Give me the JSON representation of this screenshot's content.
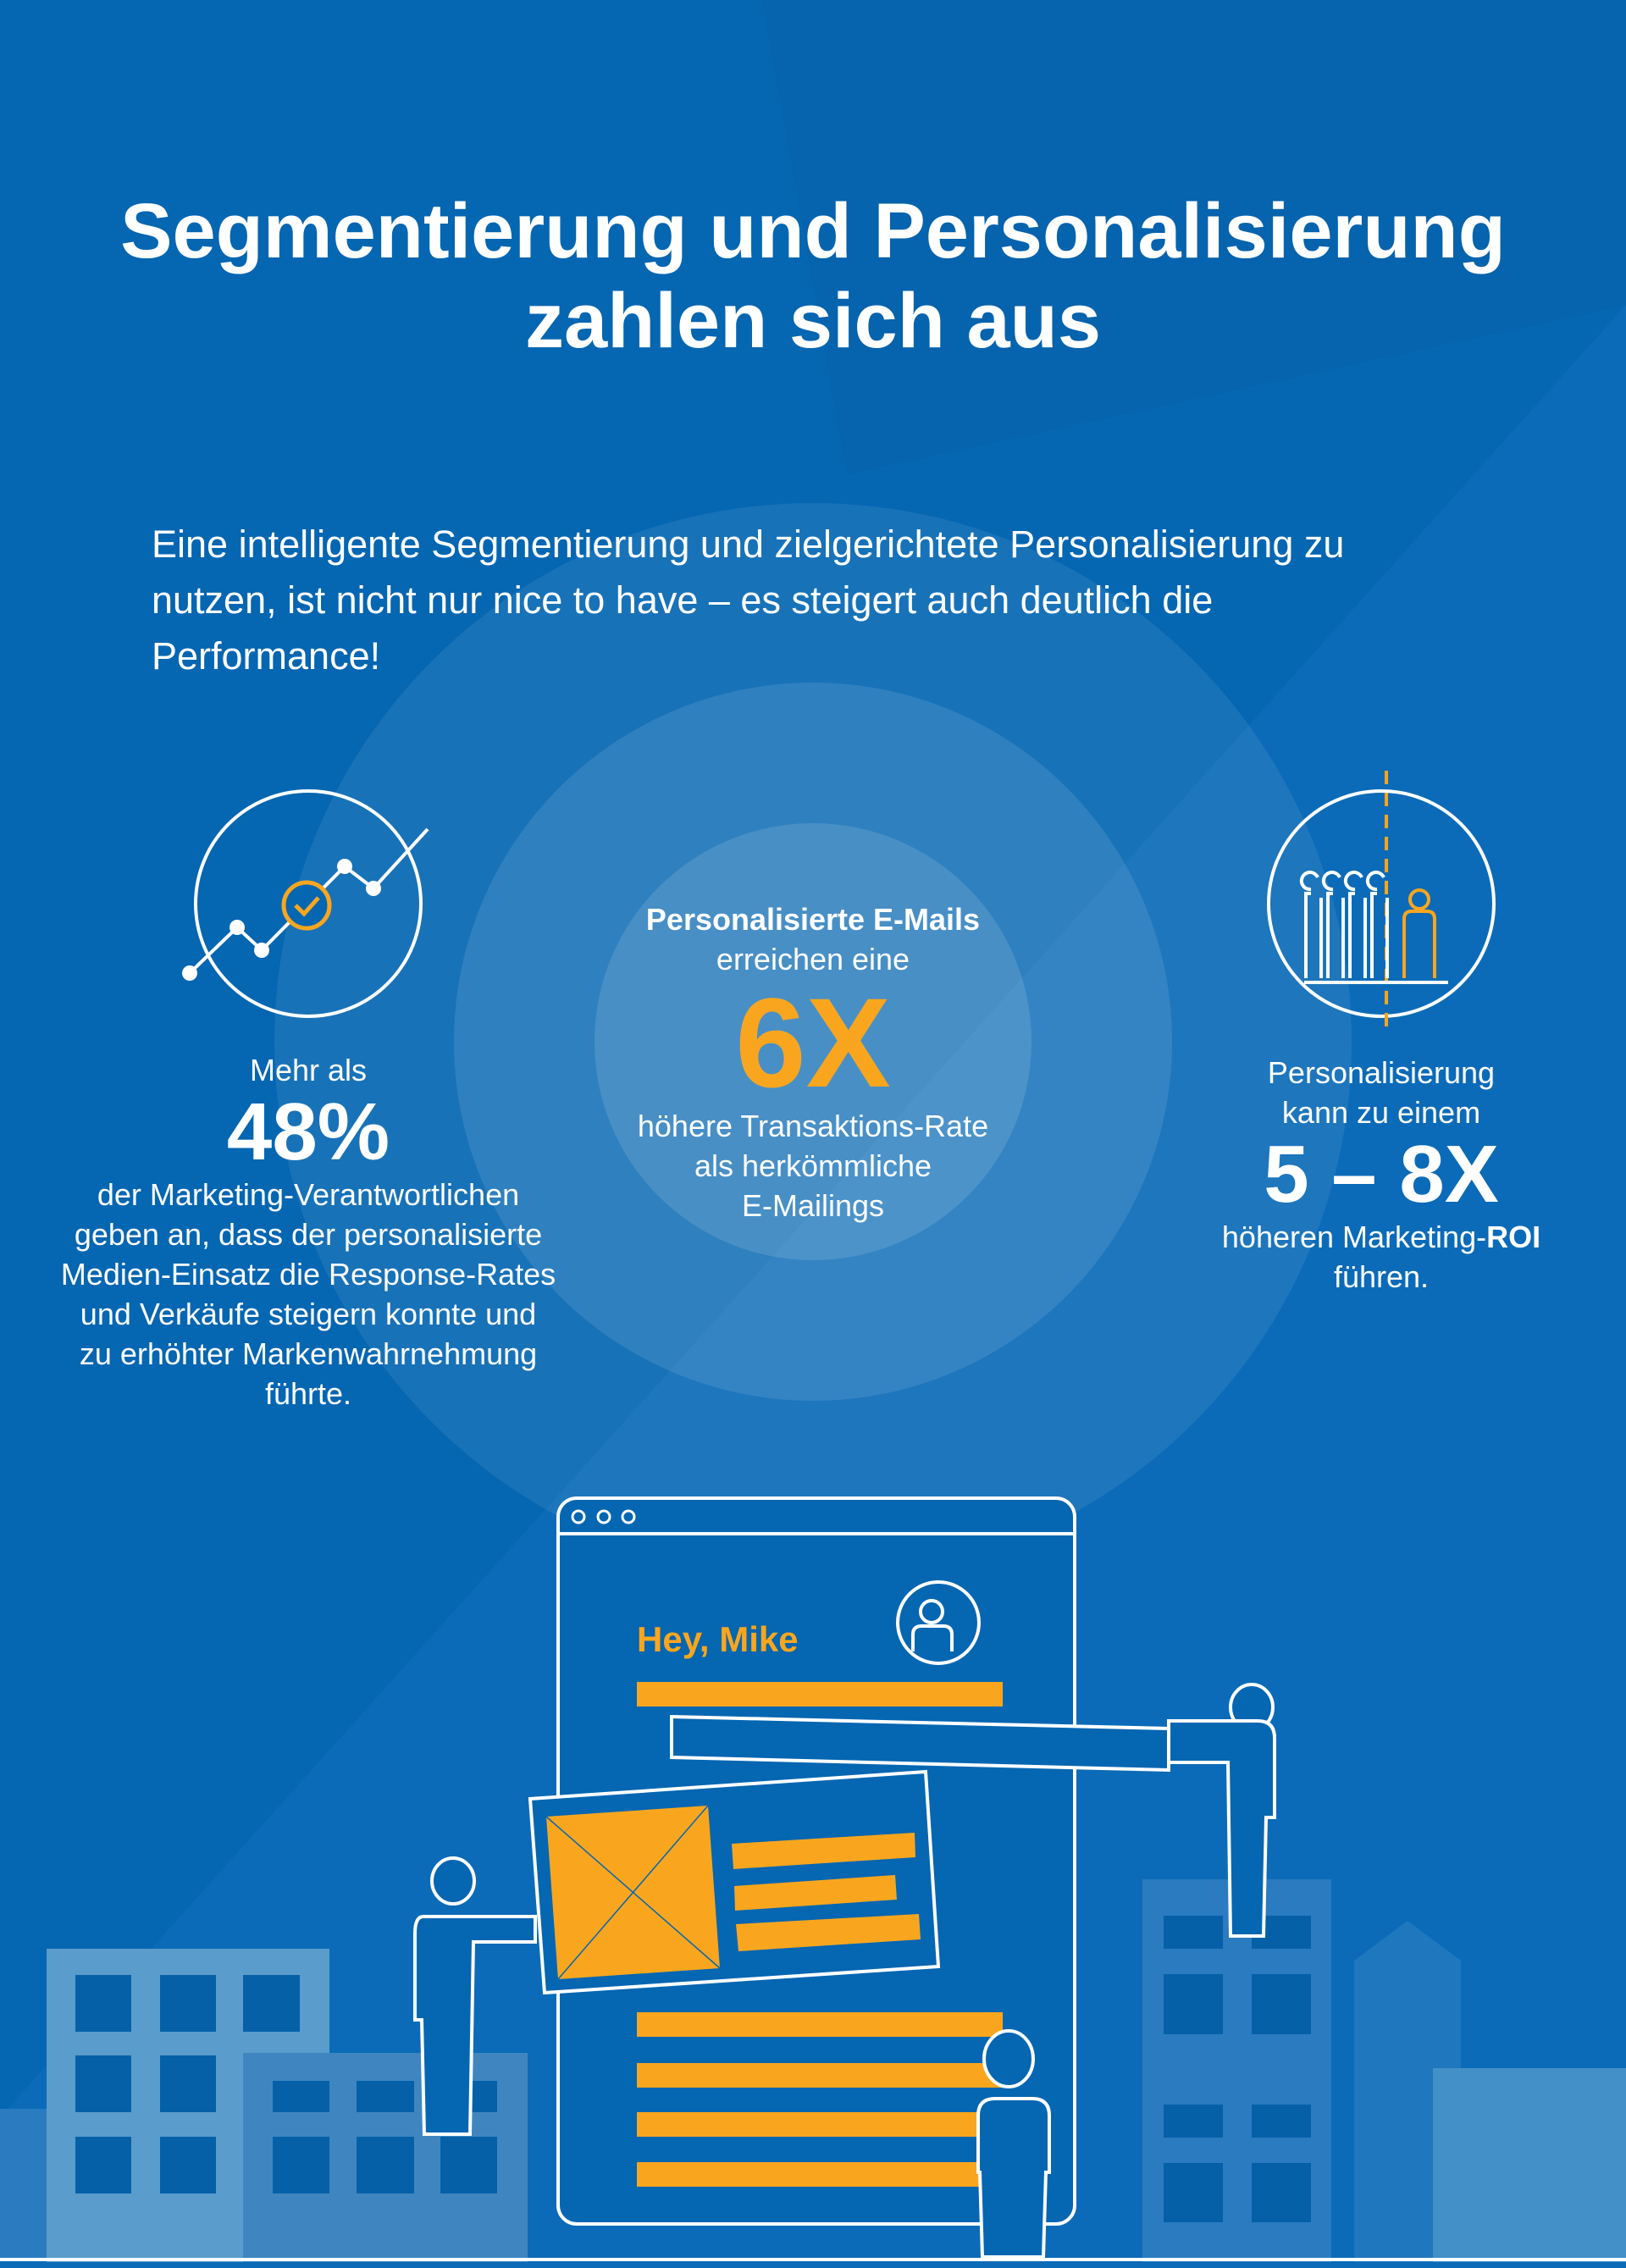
{
  "title": {
    "line1": "Segmentierung und Personalisierung",
    "line2": "zahlen sich aus"
  },
  "intro": {
    "line1": "Eine intelligente Segmentierung und zielgerichtete Personalisierung zu",
    "line2": "nutzen, ist nicht nur nice to have – es steigert auch deutlich die",
    "line3": "Performance!"
  },
  "left_stat": {
    "icon": "growth-chart-icon",
    "prefix": "Mehr als",
    "value": "48%",
    "lines": [
      "der Marketing-Verantwortlichen",
      "geben an, dass der personalisierte",
      "Medien-Einsatz die Response-Rates",
      "und Verkäufe steigern konnte und",
      "zu erhöhter Markenwahrnehmung",
      "führte."
    ]
  },
  "center_stat": {
    "heading": "Personalisierte E-Mails",
    "line2": "erreichen eine",
    "value": "6X",
    "lines": [
      "höhere Transaktions-Rate",
      "als herkömmliche",
      "E-Mailings"
    ]
  },
  "right_stat": {
    "icon": "standout-person-icon",
    "line1": "Personalisierung",
    "line2": "kann zu einem",
    "value": "5 – 8X",
    "line3_prefix": "höheren Marketing-",
    "line3_bold": "ROI",
    "line4": "führen."
  },
  "illustration": {
    "greeting": "Hey, Mike"
  },
  "colors": {
    "background": "#0566b2",
    "accent": "#f9a61e"
  }
}
